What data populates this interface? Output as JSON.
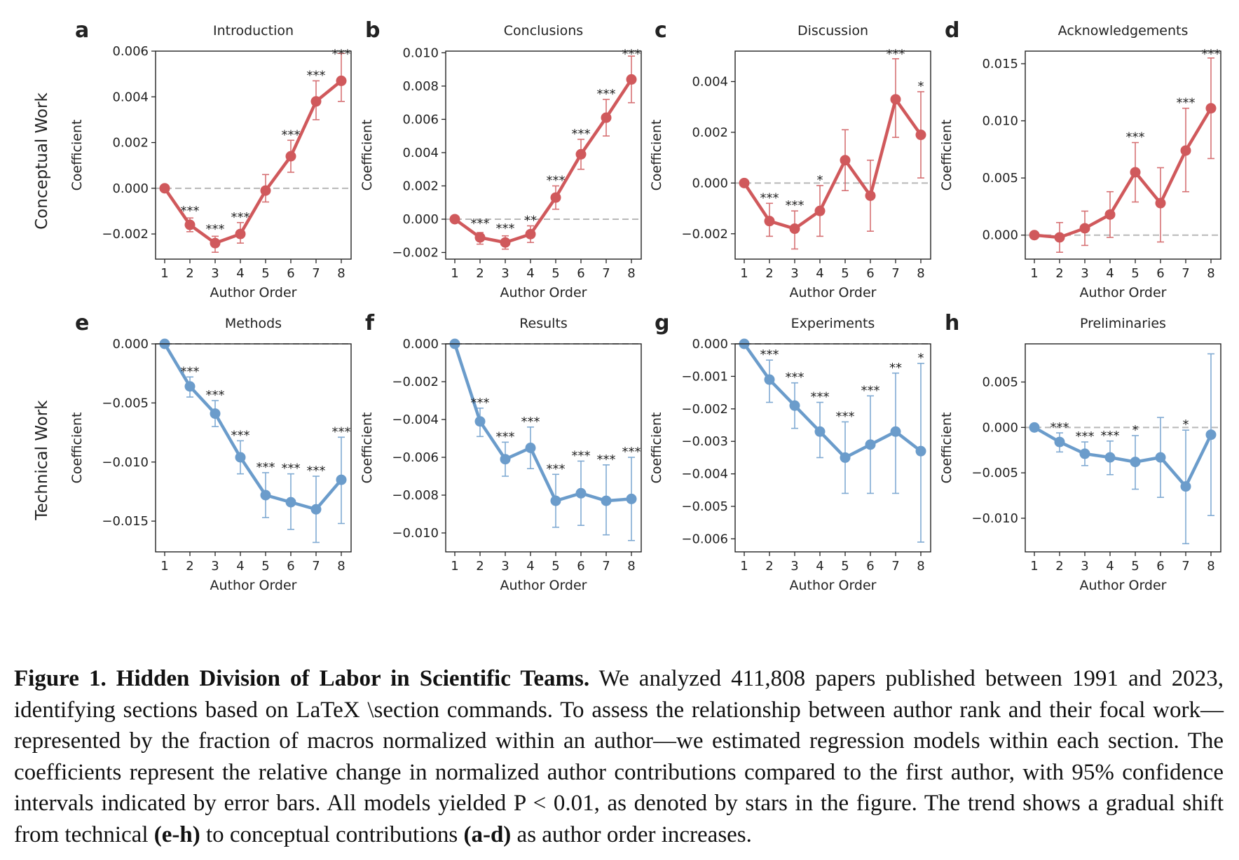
{
  "row_labels": [
    "Conceptual Work",
    "Technical Work"
  ],
  "colors": {
    "conceptual": "#d0595c",
    "technical": "#6b9ccb",
    "zero_line": "#b8b8b8"
  },
  "chart_data": [
    {
      "panel": "a",
      "title": "Introduction",
      "type": "line",
      "group": "conceptual",
      "xlabel": "Author Order",
      "ylabel": "Coefficient",
      "x": [
        1,
        2,
        3,
        4,
        5,
        6,
        7,
        8
      ],
      "values": [
        0.0,
        -0.0016,
        -0.0024,
        -0.002,
        -0.0001,
        0.0014,
        0.0038,
        0.0047
      ],
      "ci_low": [
        0.0,
        -0.0019,
        -0.0028,
        -0.0024,
        -0.0006,
        0.0007,
        0.003,
        0.0038
      ],
      "ci_high": [
        0.0,
        -0.0013,
        -0.0021,
        -0.0015,
        0.0006,
        0.0021,
        0.0047,
        0.0059
      ],
      "stars": [
        "",
        "***",
        "***",
        "***",
        "",
        "***",
        "***",
        "***"
      ],
      "ylim": [
        -0.0031,
        0.006
      ],
      "yticks": [
        -0.002,
        0.0,
        0.002,
        0.004,
        0.006
      ],
      "ytick_labels": [
        "−0.002",
        "0.000",
        "0.002",
        "0.004",
        "0.006"
      ]
    },
    {
      "panel": "b",
      "title": "Conclusions",
      "type": "line",
      "group": "conceptual",
      "xlabel": "Author Order",
      "ylabel": "Coefficient",
      "x": [
        1,
        2,
        3,
        4,
        5,
        6,
        7,
        8
      ],
      "values": [
        0.0,
        -0.0011,
        -0.0014,
        -0.0009,
        0.0013,
        0.0039,
        0.0061,
        0.0084
      ],
      "ci_low": [
        0.0,
        -0.0015,
        -0.0018,
        -0.0014,
        0.0006,
        0.003,
        0.005,
        0.007
      ],
      "ci_high": [
        0.0,
        -0.0008,
        -0.001,
        -0.0004,
        0.002,
        0.0048,
        0.0072,
        0.0098
      ],
      "stars": [
        "",
        "***",
        "***",
        "**",
        "***",
        "***",
        "***",
        "***"
      ],
      "ylim": [
        -0.0024,
        0.0101
      ],
      "yticks": [
        -0.002,
        0.0,
        0.002,
        0.004,
        0.006,
        0.008,
        0.01
      ],
      "ytick_labels": [
        "−0.002",
        "0.000",
        "0.002",
        "0.004",
        "0.006",
        "0.008",
        "0.010"
      ]
    },
    {
      "panel": "c",
      "title": "Discussion",
      "type": "line",
      "group": "conceptual",
      "xlabel": "Author Order",
      "ylabel": "Coefficient",
      "x": [
        1,
        2,
        3,
        4,
        5,
        6,
        7,
        8
      ],
      "values": [
        0.0,
        -0.0015,
        -0.0018,
        -0.0011,
        0.0009,
        -0.0005,
        0.0033,
        0.0019
      ],
      "ci_low": [
        0.0,
        -0.0021,
        -0.0026,
        -0.0021,
        -0.0003,
        -0.0019,
        0.0018,
        0.0002
      ],
      "ci_high": [
        0.0,
        -0.0008,
        -0.0011,
        -0.0001,
        0.0021,
        0.0009,
        0.0049,
        0.0036
      ],
      "stars": [
        "",
        "***",
        "***",
        "*",
        "",
        "",
        "***",
        "*"
      ],
      "ylim": [
        -0.003,
        0.0052
      ],
      "yticks": [
        -0.002,
        0.0,
        0.002,
        0.004
      ],
      "ytick_labels": [
        "−0.002",
        "0.000",
        "0.002",
        "0.004"
      ]
    },
    {
      "panel": "d",
      "title": "Acknowledgements",
      "type": "line",
      "group": "conceptual",
      "xlabel": "Author Order",
      "ylabel": "Coefficient",
      "x": [
        1,
        2,
        3,
        4,
        5,
        6,
        7,
        8
      ],
      "values": [
        0.0,
        -0.0002,
        0.0006,
        0.0018,
        0.0055,
        0.0028,
        0.0074,
        0.0111
      ],
      "ci_low": [
        0.0,
        -0.0015,
        -0.0009,
        -0.0002,
        0.0029,
        -0.0006,
        0.0038,
        0.0067
      ],
      "ci_high": [
        0.0,
        0.0011,
        0.0021,
        0.0038,
        0.0081,
        0.0059,
        0.0111,
        0.0155
      ],
      "stars": [
        "",
        "",
        "",
        "",
        "***",
        "",
        "***",
        "***"
      ],
      "ylim": [
        -0.0021,
        0.0161
      ],
      "yticks": [
        0.0,
        0.005,
        0.01,
        0.015
      ],
      "ytick_labels": [
        "0.000",
        "0.005",
        "0.010",
        "0.015"
      ]
    },
    {
      "panel": "e",
      "title": "Methods",
      "type": "line",
      "group": "technical",
      "xlabel": "Author Order",
      "ylabel": "Coefficient",
      "x": [
        1,
        2,
        3,
        4,
        5,
        6,
        7,
        8
      ],
      "values": [
        0.0,
        -0.0036,
        -0.0059,
        -0.0096,
        -0.0128,
        -0.0134,
        -0.014,
        -0.0115
      ],
      "ci_low": [
        0.0,
        -0.0045,
        -0.007,
        -0.011,
        -0.0147,
        -0.0157,
        -0.0168,
        -0.0152
      ],
      "ci_high": [
        0.0,
        -0.0028,
        -0.0048,
        -0.0082,
        -0.0109,
        -0.011,
        -0.0112,
        -0.0079
      ],
      "stars": [
        "",
        "***",
        "***",
        "***",
        "***",
        "***",
        "***",
        "***"
      ],
      "ylim": [
        -0.0176,
        0.0
      ],
      "yticks": [
        -0.015,
        -0.01,
        -0.005,
        0.0
      ],
      "ytick_labels": [
        "−0.015",
        "−0.010",
        "−0.005",
        "0.000"
      ]
    },
    {
      "panel": "f",
      "title": "Results",
      "type": "line",
      "group": "technical",
      "xlabel": "Author Order",
      "ylabel": "Coefficient",
      "x": [
        1,
        2,
        3,
        4,
        5,
        6,
        7,
        8
      ],
      "values": [
        0.0,
        -0.0041,
        -0.0061,
        -0.0055,
        -0.0083,
        -0.0079,
        -0.0083,
        -0.0082
      ],
      "ci_low": [
        0.0,
        -0.0049,
        -0.007,
        -0.0066,
        -0.0097,
        -0.0096,
        -0.0101,
        -0.0104
      ],
      "ci_high": [
        0.0,
        -0.0034,
        -0.0052,
        -0.0044,
        -0.0069,
        -0.0062,
        -0.0064,
        -0.006
      ],
      "stars": [
        "",
        "***",
        "***",
        "***",
        "***",
        "***",
        "***",
        "***"
      ],
      "ylim": [
        -0.011,
        0.0
      ],
      "yticks": [
        -0.01,
        -0.008,
        -0.006,
        -0.004,
        -0.002,
        0.0
      ],
      "ytick_labels": [
        "−0.010",
        "−0.008",
        "−0.006",
        "−0.004",
        "−0.002",
        "0.000"
      ]
    },
    {
      "panel": "g",
      "title": "Experiments",
      "type": "line",
      "group": "technical",
      "xlabel": "Author Order",
      "ylabel": "Coefficient",
      "x": [
        1,
        2,
        3,
        4,
        5,
        6,
        7,
        8
      ],
      "values": [
        0.0,
        -0.0011,
        -0.0019,
        -0.0027,
        -0.0035,
        -0.0031,
        -0.0027,
        -0.0033
      ],
      "ci_low": [
        0.0,
        -0.0018,
        -0.0026,
        -0.0035,
        -0.0046,
        -0.0046,
        -0.0046,
        -0.0061
      ],
      "ci_high": [
        0.0,
        -0.0005,
        -0.0012,
        -0.0018,
        -0.0024,
        -0.0016,
        -0.0009,
        -0.0006
      ],
      "stars": [
        "",
        "***",
        "***",
        "***",
        "***",
        "***",
        "**",
        "*"
      ],
      "ylim": [
        -0.0064,
        0.0
      ],
      "yticks": [
        -0.006,
        -0.005,
        -0.004,
        -0.003,
        -0.002,
        -0.001,
        0.0
      ],
      "ytick_labels": [
        "−0.006",
        "−0.005",
        "−0.004",
        "−0.003",
        "−0.002",
        "−0.001",
        "0.000"
      ]
    },
    {
      "panel": "h",
      "title": "Preliminaries",
      "type": "line",
      "group": "technical",
      "xlabel": "Author Order",
      "ylabel": "Coefficient",
      "x": [
        1,
        2,
        3,
        4,
        5,
        6,
        7,
        8
      ],
      "values": [
        0.0,
        -0.0016,
        -0.0029,
        -0.0033,
        -0.0038,
        -0.0033,
        -0.0065,
        -0.0008
      ],
      "ci_low": [
        0.0,
        -0.0027,
        -0.0042,
        -0.0052,
        -0.0068,
        -0.0077,
        -0.0128,
        -0.0097
      ],
      "ci_high": [
        0.0,
        -0.0006,
        -0.0016,
        -0.0015,
        -0.0009,
        0.0011,
        -0.0003,
        0.0081
      ],
      "stars": [
        "",
        "***",
        "***",
        "***",
        "*",
        "",
        "*",
        ""
      ],
      "ylim": [
        -0.0137,
        0.0092
      ],
      "yticks": [
        -0.01,
        -0.005,
        0.0,
        0.005
      ],
      "ytick_labels": [
        "−0.010",
        "−0.005",
        "0.000",
        "0.005"
      ]
    }
  ],
  "caption": {
    "label": "Figure 1. Hidden Division of Labor in Scientific Teams.",
    "text_1": " We analyzed 411,808 papers published between 1991 and 2023, identifying sections based on LaTeX \\section commands. To assess the relationship between author rank and their focal work—represented by the fraction of macros normalized within an author—we estimated regression models within each section. The coefficients represent the relative change in normalized author contributions compared to the first author, with 95% confidence intervals indicated by error bars. All models yielded P < 0.01, as denoted by stars in the figure. The trend shows a gradual shift from technical ",
    "ref_technical": "(e-h)",
    "text_2": " to conceptual contributions ",
    "ref_conceptual": "(a-d)",
    "text_3": " as author order increases."
  }
}
